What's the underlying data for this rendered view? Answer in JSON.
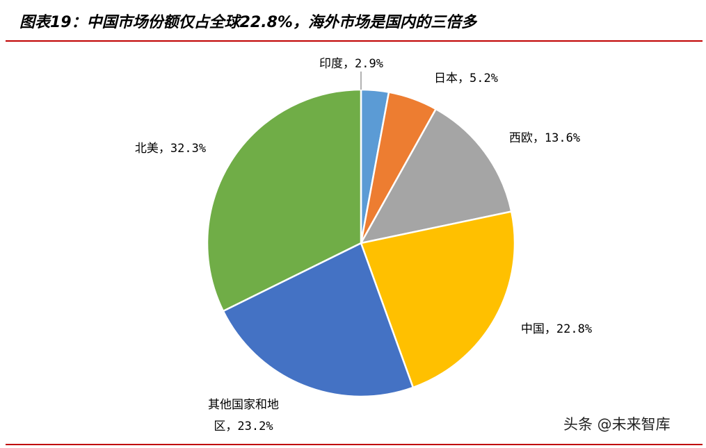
{
  "chart_data": {
    "type": "pie",
    "title": "图表19：中国市场份额仅占全球22.8%，海外市场是国内的三倍多",
    "values": [
      2.9,
      5.2,
      13.6,
      22.8,
      23.2,
      32.3
    ],
    "value_labels": [
      "印度，2.9%",
      "日本，5.2%",
      "西欧，13.6%",
      "中国，22.8%",
      "其他国家和地区，23.2%",
      "北美，32.3%"
    ],
    "colors": [
      "#5b9bd5",
      "#ed7d31",
      "#a5a5a5",
      "#ffc000",
      "#4472c4",
      "#70ad47"
    ]
  },
  "watermark": "头条 @未来智库"
}
